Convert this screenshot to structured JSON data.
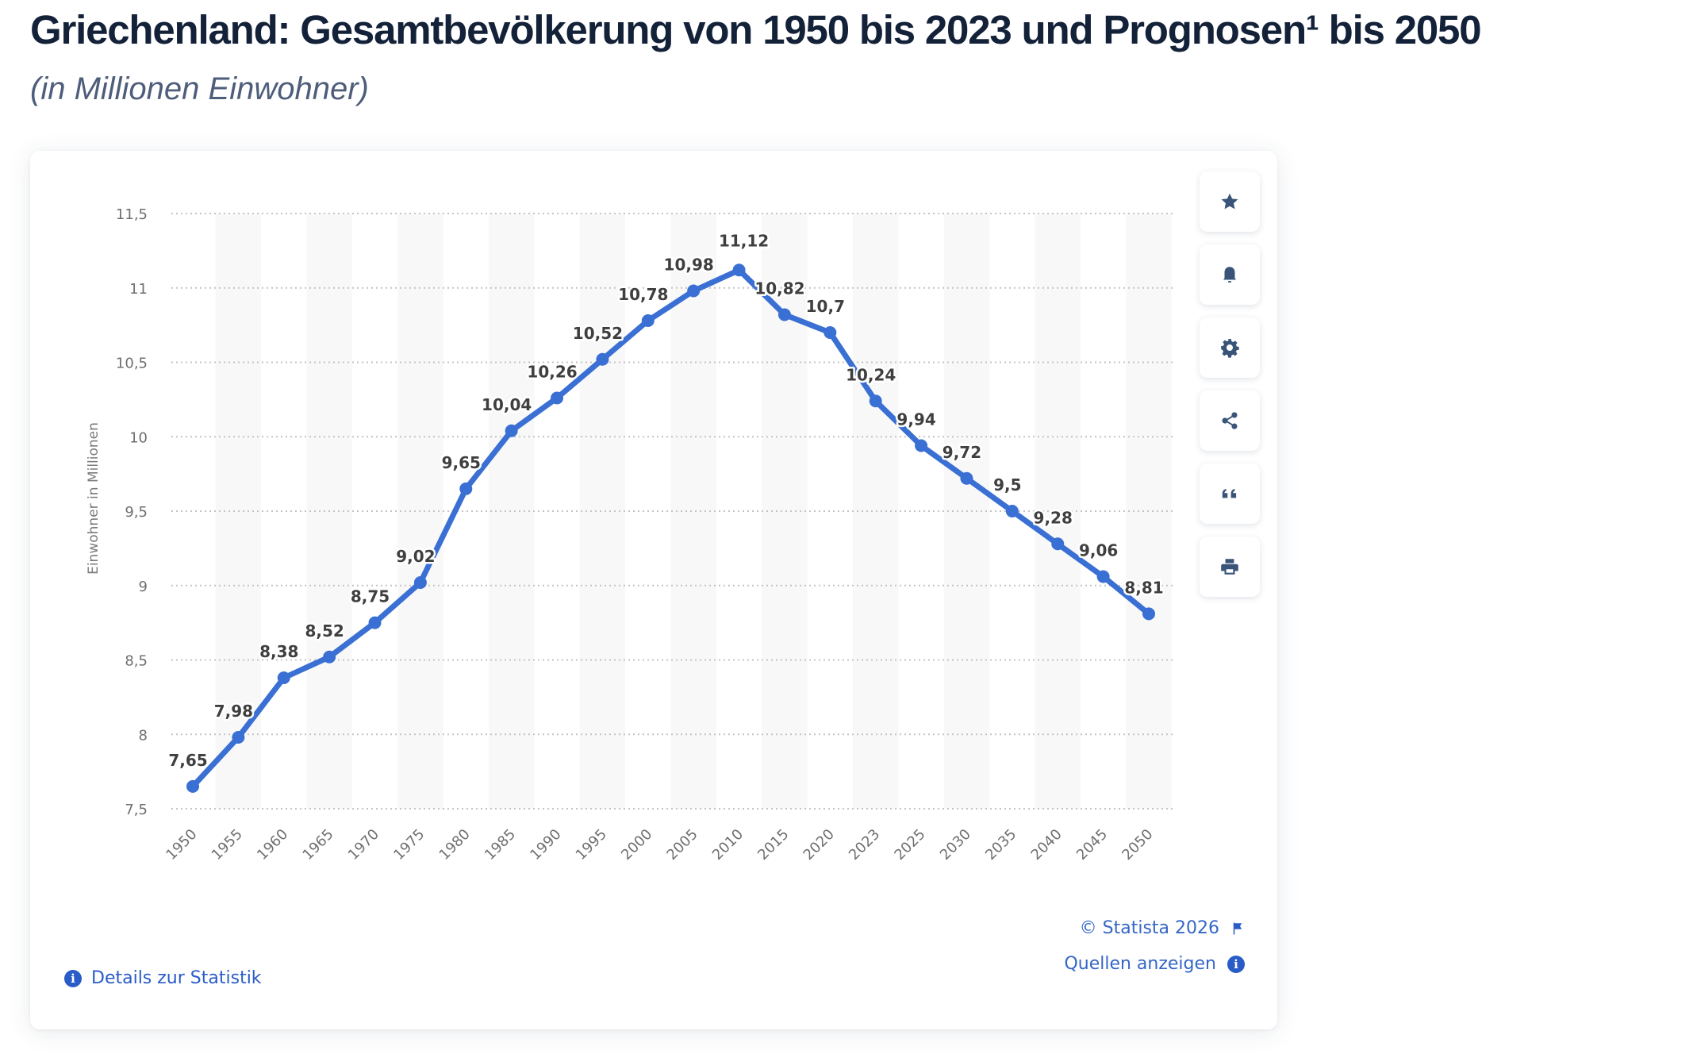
{
  "header": {
    "title": "Griechenland: Gesamtbevölkerung von 1950 bis 2023 und Prognosen¹ bis 2050",
    "subtitle": "(in Millionen Einwohner)"
  },
  "toolbar": {
    "items": [
      {
        "name": "favorite",
        "icon": "star-icon"
      },
      {
        "name": "notification",
        "icon": "bell-icon"
      },
      {
        "name": "settings",
        "icon": "gear-icon"
      },
      {
        "name": "share",
        "icon": "share-icon"
      },
      {
        "name": "cite",
        "icon": "quote-icon"
      },
      {
        "name": "print",
        "icon": "printer-icon"
      }
    ]
  },
  "footer": {
    "details_label": "Details zur Statistik",
    "copyright": "© Statista 2026",
    "sources_label": "Quellen anzeigen"
  },
  "colors": {
    "line": "#3a6fd3",
    "link": "#2a5cc8",
    "icon": "#3a5479",
    "stripe": "#f8f8f9"
  },
  "chart_data": {
    "type": "line",
    "title": "Griechenland: Gesamtbevölkerung von 1950 bis 2023 und Prognosen¹ bis 2050",
    "subtitle": "(in Millionen Einwohner)",
    "xlabel": "",
    "ylabel": "Einwohner in Millionen",
    "ylim": [
      7.5,
      11.5
    ],
    "yticks": [
      7.5,
      8,
      8.5,
      9,
      9.5,
      10,
      10.5,
      11,
      11.5
    ],
    "ytick_labels": [
      "7,5",
      "8",
      "8,5",
      "9",
      "9,5",
      "10",
      "10,5",
      "11",
      "11,5"
    ],
    "grid": true,
    "legend": "none",
    "categories": [
      "1950",
      "1955",
      "1960",
      "1965",
      "1970",
      "1975",
      "1980",
      "1985",
      "1990",
      "1995",
      "2000",
      "2005",
      "2010",
      "2015",
      "2020",
      "2023",
      "2025",
      "2030",
      "2035",
      "2040",
      "2045",
      "2050"
    ],
    "series": [
      {
        "name": "Einwohner in Millionen",
        "values": [
          7.65,
          7.98,
          8.38,
          8.52,
          8.75,
          9.02,
          9.65,
          10.04,
          10.26,
          10.52,
          10.78,
          10.98,
          11.12,
          10.82,
          10.7,
          10.24,
          9.94,
          9.72,
          9.5,
          9.28,
          9.06,
          8.81
        ],
        "labels": [
          "7,65",
          "7,98",
          "8,38",
          "8,52",
          "8,75",
          "9,02",
          "9,65",
          "10,04",
          "10,26",
          "10,52",
          "10,78",
          "10,98",
          "11,12",
          "10,82",
          "10,7",
          "10,24",
          "9,94",
          "9,72",
          "9,5",
          "9,28",
          "9,06",
          "8,81"
        ]
      }
    ]
  }
}
